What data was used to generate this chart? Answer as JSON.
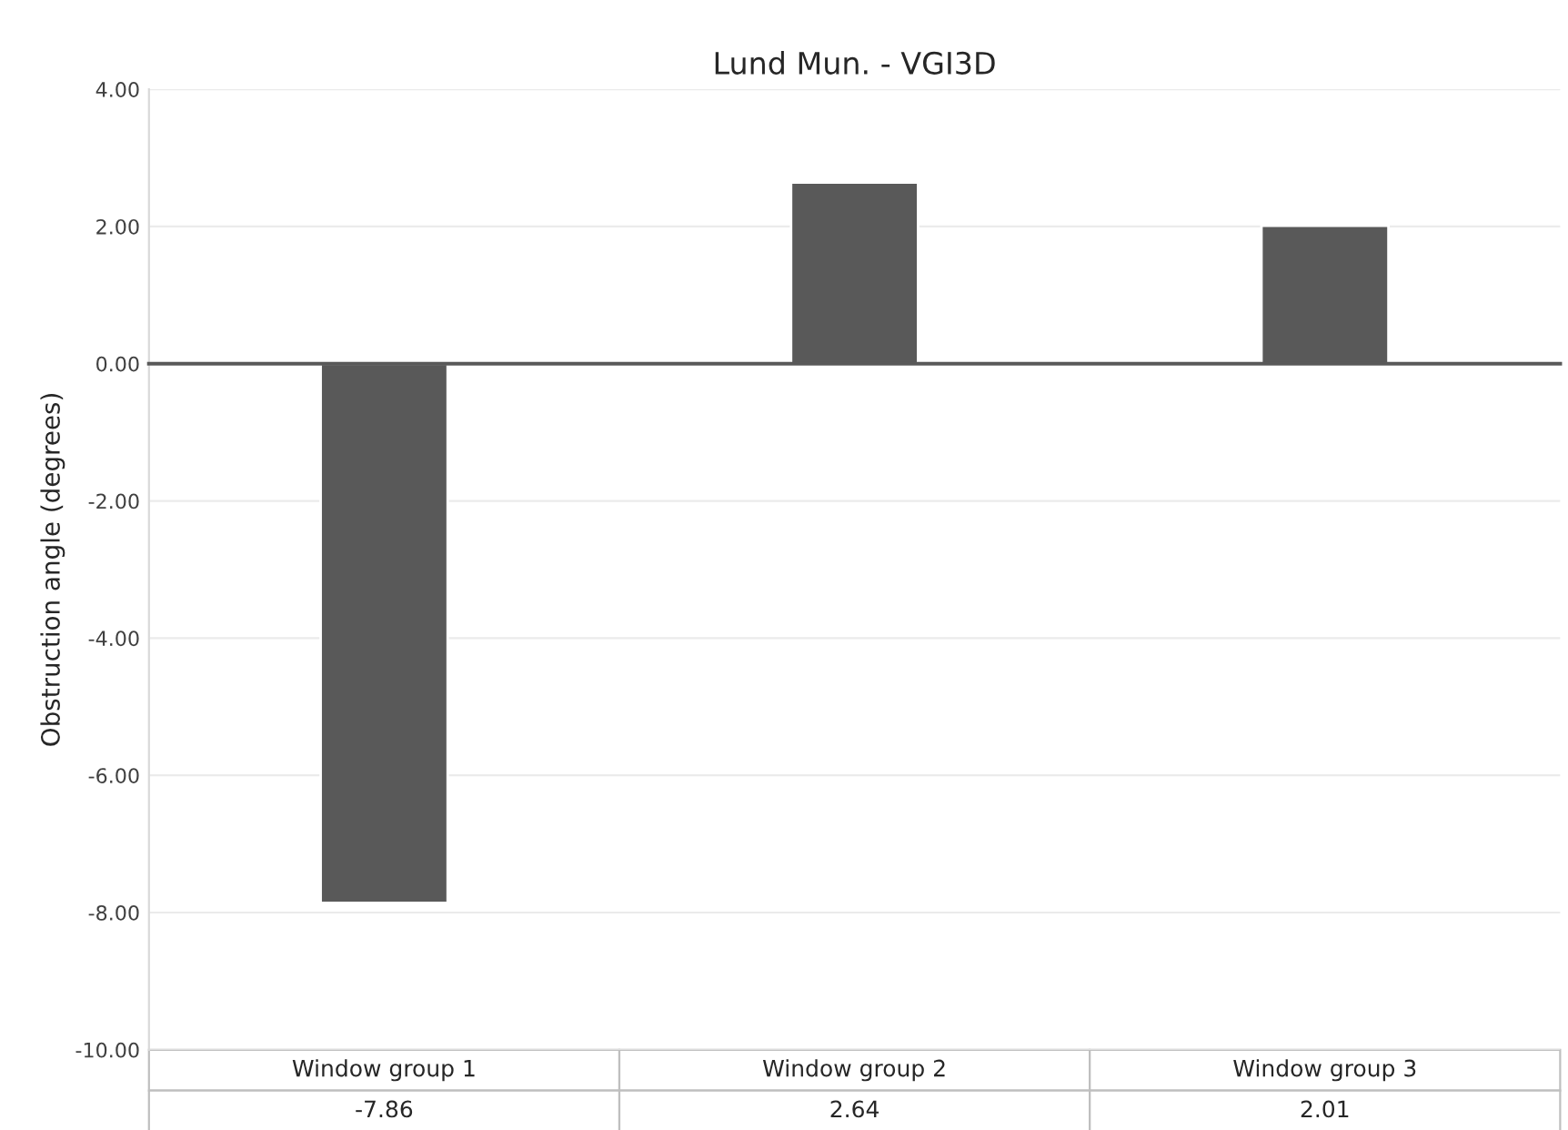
{
  "chart_data": {
    "type": "bar",
    "title": "Lund Mun. - VGI3D",
    "ylabel": "Obstruction angle (degrees)",
    "categories": [
      "Window group 1",
      "Window group 2",
      "Window group 3"
    ],
    "values": [
      -7.86,
      2.64,
      2.01
    ],
    "color": "#595959",
    "ylim": [
      -10,
      4
    ],
    "yticks": [
      {
        "value": -10,
        "label": "-10.00"
      },
      {
        "value": -8,
        "label": "-8.00"
      },
      {
        "value": -6,
        "label": "-6.00"
      },
      {
        "value": -4,
        "label": "-4.00"
      },
      {
        "value": -2,
        "label": "-2.00"
      },
      {
        "value": 0,
        "label": "0.00"
      },
      {
        "value": 2,
        "label": "2.00"
      },
      {
        "value": 4,
        "label": "4.00"
      }
    ],
    "grid": "y",
    "data_labels": true
  }
}
